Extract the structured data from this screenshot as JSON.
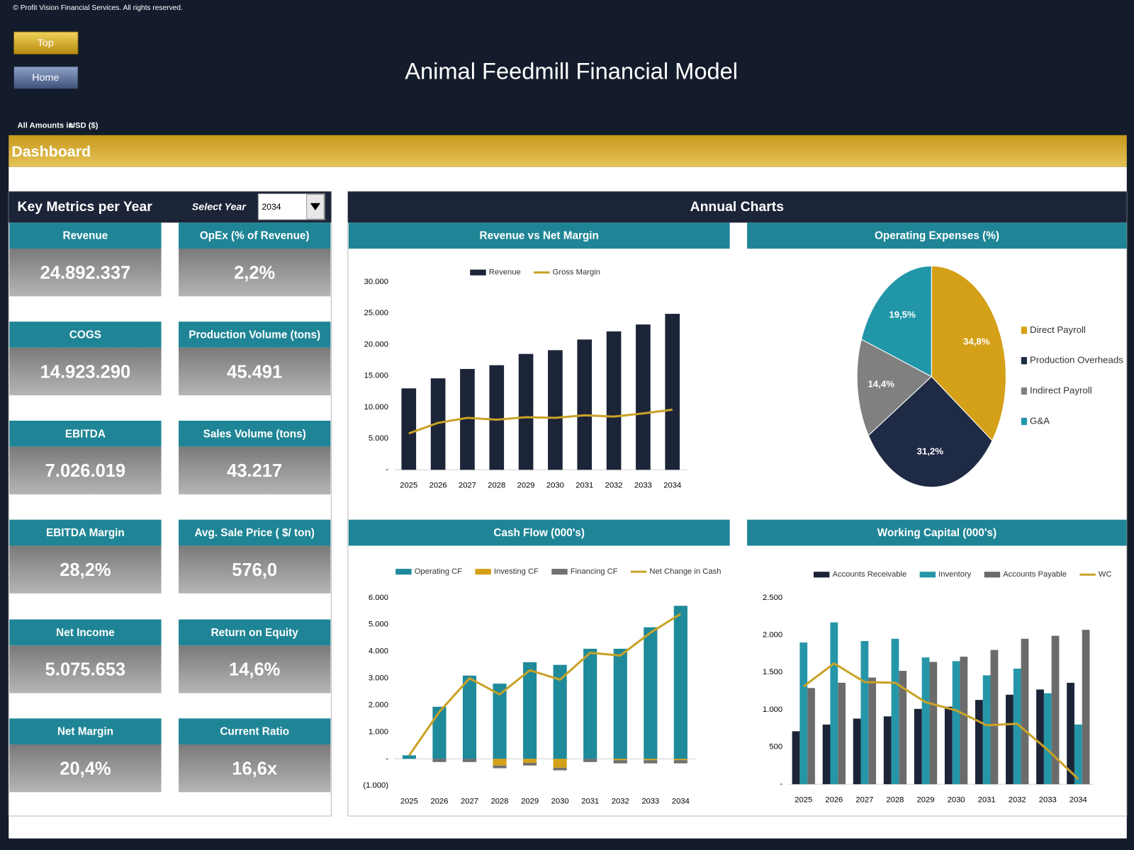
{
  "header": {
    "copyright": "© Profit Vision Financial Services. All rights reserved.",
    "buttons": [
      "Top",
      "Home"
    ],
    "title": "Animal Feedmill Financial Model",
    "amounts_label": "All Amounts in",
    "currency": "USD ($)",
    "section": "Dashboard"
  },
  "key_metrics": {
    "title": "Key Metrics per Year",
    "select_label": "Select Year",
    "selected_year": "2034",
    "items": [
      {
        "label": "Revenue",
        "value": "24.892.337"
      },
      {
        "label": "OpEx (% of Revenue)",
        "value": "2,2%"
      },
      {
        "label": "COGS",
        "value": "14.923.290"
      },
      {
        "label": "Production Volume (tons)",
        "value": "45.491"
      },
      {
        "label": "EBITDA",
        "value": "7.026.019"
      },
      {
        "label": "Sales Volume (tons)",
        "value": "43.217"
      },
      {
        "label": "EBITDA Margin",
        "value": "28,2%"
      },
      {
        "label": "Avg. Sale Price ( $/ ton)",
        "value": "576,0"
      },
      {
        "label": "Net Income",
        "value": "5.075.653"
      },
      {
        "label": "Return on Equity",
        "value": "14,6%"
      },
      {
        "label": "Net Margin",
        "value": "20,4%"
      },
      {
        "label": "Current Ratio",
        "value": "16,6x"
      }
    ]
  },
  "annual_charts_title": "Annual Charts",
  "chart_data": [
    {
      "type": "bar",
      "title": "Revenue vs Net Margin",
      "categories": [
        "2025",
        "2026",
        "2027",
        "2028",
        "2029",
        "2030",
        "2031",
        "2032",
        "2033",
        "2034"
      ],
      "series": [
        {
          "name": "Revenue",
          "color": "#1c2438",
          "values": [
            13000,
            14600,
            16100,
            16700,
            18500,
            19100,
            20800,
            22100,
            23200,
            24900
          ]
        },
        {
          "name": "Gross Margin",
          "type": "line",
          "color": "#c9a227",
          "values": [
            5800,
            7500,
            8300,
            8000,
            8400,
            8300,
            8700,
            8500,
            9000,
            9600
          ]
        }
      ],
      "ylim": [
        0,
        30000
      ],
      "yticks": [
        {
          "value": 0,
          "label": "-"
        },
        {
          "value": 5000,
          "label": "5.000"
        },
        {
          "value": 10000,
          "label": "10.000"
        },
        {
          "value": 15000,
          "label": "15.000"
        },
        {
          "value": 20000,
          "label": "20.000"
        },
        {
          "value": 25000,
          "label": "25.000"
        },
        {
          "value": 30000,
          "label": "30.000"
        }
      ],
      "grid": false,
      "stacked": false
    },
    {
      "type": "pie",
      "title": "Operating Expenses (%)",
      "categories": [
        "Direct Payroll",
        "Production Overheads",
        "Indirect Payroll",
        "G&A"
      ],
      "values": [
        34.8,
        31.2,
        14.4,
        19.5
      ],
      "value_labels": [
        "34,8%",
        "31,2%",
        "14,4%",
        "19,5%"
      ],
      "colors": [
        "#d4a017",
        "#1f2a44",
        "#808080",
        "#2196a8"
      ],
      "legend": "right"
    },
    {
      "type": "bar",
      "title": "Cash Flow (000's)",
      "categories": [
        "2025",
        "2026",
        "2027",
        "2028",
        "2029",
        "2030",
        "2031",
        "2032",
        "2033",
        "2034"
      ],
      "series": [
        {
          "name": "Operating CF",
          "color": "#1e8a9a",
          "values": [
            130,
            1940,
            3100,
            2800,
            3600,
            3500,
            4100,
            4100,
            4900,
            5700
          ]
        },
        {
          "name": "Investing CF",
          "color": "#d4a017",
          "values": [
            0,
            0,
            0,
            -250,
            -150,
            -330,
            0,
            -50,
            -50,
            -50
          ]
        },
        {
          "name": "Financing CF",
          "color": "#707070",
          "values": [
            0,
            -120,
            -120,
            -100,
            -100,
            -100,
            -120,
            -120,
            -120,
            -120
          ]
        },
        {
          "name": "Net Change in Cash",
          "type": "line",
          "color": "#c9a227",
          "values": [
            130,
            1750,
            3000,
            2400,
            3300,
            2950,
            3950,
            3850,
            4700,
            5400
          ]
        }
      ],
      "ylim": [
        -1000,
        6000
      ],
      "yticks": [
        {
          "value": -1000,
          "label": "(1.000)"
        },
        {
          "value": 0,
          "label": "-"
        },
        {
          "value": 1000,
          "label": "1.000"
        },
        {
          "value": 2000,
          "label": "2.000"
        },
        {
          "value": 3000,
          "label": "3.000"
        },
        {
          "value": 4000,
          "label": "4.000"
        },
        {
          "value": 5000,
          "label": "5.000"
        },
        {
          "value": 6000,
          "label": "6.000"
        }
      ],
      "grid": false,
      "stacked": true
    },
    {
      "type": "bar",
      "title": "Working Capital (000's)",
      "categories": [
        "2025",
        "2026",
        "2027",
        "2028",
        "2029",
        "2030",
        "2031",
        "2032",
        "2033",
        "2034"
      ],
      "series": [
        {
          "name": "Accounts Receivable",
          "color": "#1c2438",
          "values": [
            710,
            800,
            880,
            910,
            1010,
            1040,
            1130,
            1200,
            1270,
            1360
          ]
        },
        {
          "name": "Inventory",
          "color": "#2596a8",
          "values": [
            1900,
            2170,
            1920,
            1950,
            1700,
            1650,
            1460,
            1550,
            1220,
            800
          ]
        },
        {
          "name": "Accounts Payable",
          "color": "#6b6b6b",
          "values": [
            1290,
            1360,
            1430,
            1520,
            1640,
            1710,
            1800,
            1950,
            1990,
            2070
          ]
        },
        {
          "name": "WC",
          "type": "line",
          "color": "#c9a227",
          "values": [
            1310,
            1620,
            1370,
            1360,
            1100,
            990,
            790,
            810,
            460,
            70
          ]
        }
      ],
      "ylim": [
        0,
        2500
      ],
      "yticks": [
        {
          "value": 0,
          "label": "-"
        },
        500,
        {
          "value": 1000,
          "label": "1.000"
        },
        {
          "value": 1500,
          "label": "1.500"
        },
        {
          "value": 2000,
          "label": "2.000"
        },
        {
          "value": 2500,
          "label": "2.500"
        }
      ],
      "grid": false,
      "stacked": false
    }
  ]
}
